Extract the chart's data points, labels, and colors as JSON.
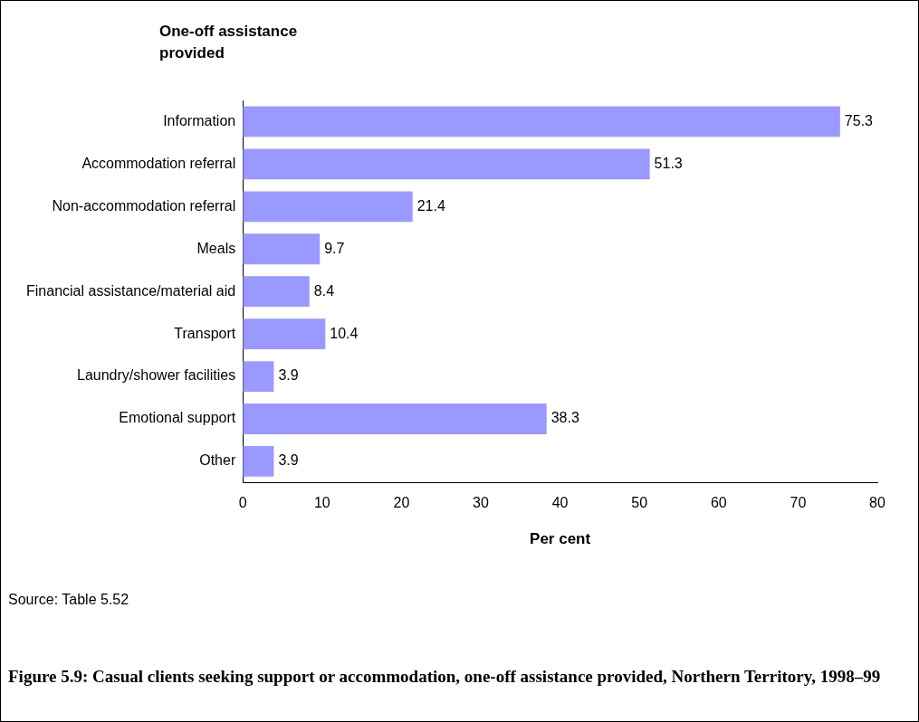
{
  "chart_data": {
    "type": "bar",
    "orientation": "horizontal",
    "title": "Figure 5.9: Casual clients seeking support or accommodation, one-off assistance provided, Northern Territory, 1998–99",
    "ylabel": "One-off assistance provided",
    "xlabel": "Per cent",
    "categories": [
      "Information",
      "Accommodation referral",
      "Non-accommodation referral",
      "Meals",
      "Financial assistance/material aid",
      "Transport",
      "Laundry/shower facilities",
      "Emotional support",
      "Other"
    ],
    "values": [
      75.3,
      51.3,
      21.4,
      9.7,
      8.4,
      10.4,
      3.9,
      38.3,
      3.9
    ],
    "color": "#9999ff",
    "xlim": [
      0,
      80
    ],
    "xticks": [
      0,
      10,
      20,
      30,
      40,
      50,
      60,
      70,
      80
    ],
    "grid": false,
    "legend": false,
    "data_labels": true,
    "annotations": [
      "Source: Table 5.52"
    ]
  }
}
